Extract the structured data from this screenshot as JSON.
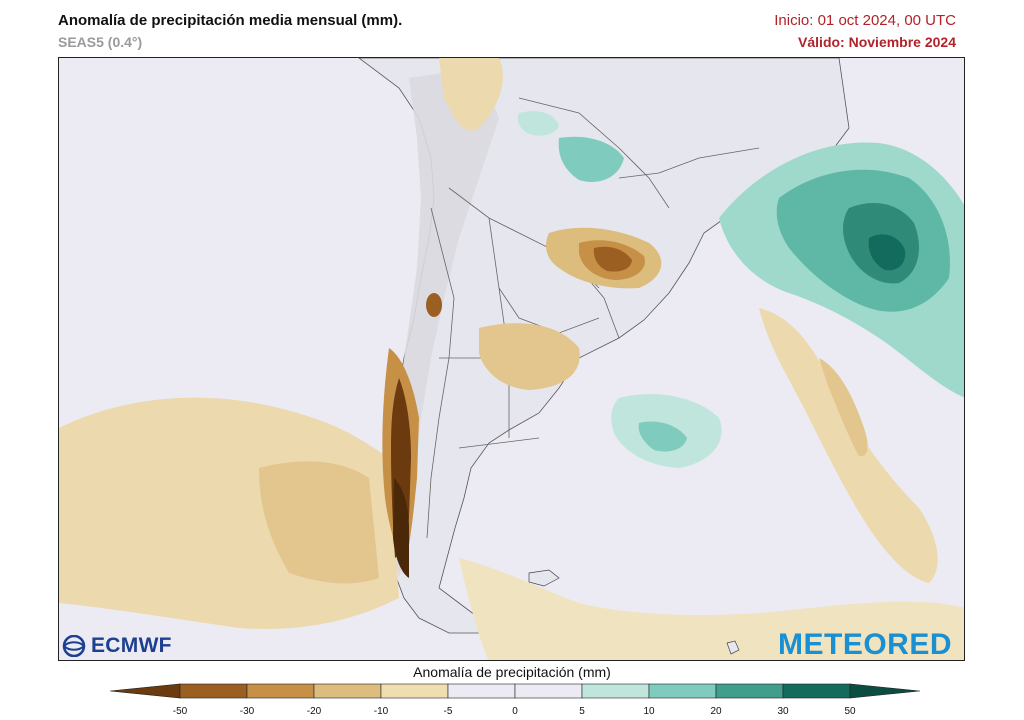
{
  "header": {
    "title": "Anomalía de precipitación media mensual (mm).",
    "model": "SEAS5 (0.4°)",
    "init": "Inicio: 01 oct 2024, 00 UTC",
    "valid": "Válido: Noviembre 2024"
  },
  "map": {
    "region": "South America — Southern Cone",
    "variable": "Precipitation anomaly",
    "units": "mm"
  },
  "logos": {
    "left": "ECMWF",
    "right": "METEORED"
  },
  "legend": {
    "title": "Anomalía de precipitación (mm)",
    "ticks": [
      "-50",
      "-30",
      "-20",
      "-10",
      "-5",
      "0",
      "5",
      "10",
      "20",
      "30",
      "50"
    ],
    "colors": [
      "#6b3a0f",
      "#9c5f22",
      "#c69147",
      "#ddbd7e",
      "#f0deb0",
      "#ecebf3",
      "#ecebf3",
      "#bfe5dd",
      "#7fcbbd",
      "#3f9f8c",
      "#136b5d",
      "#0c4d42"
    ]
  }
}
